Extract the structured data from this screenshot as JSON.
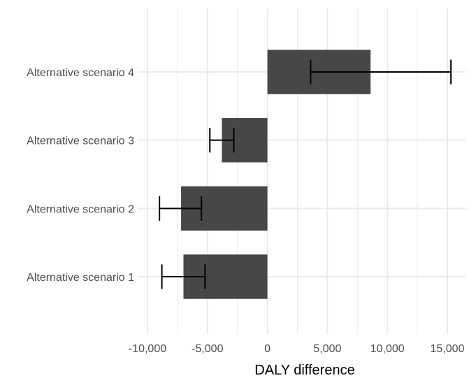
{
  "chart_data": {
    "type": "bar",
    "orientation": "horizontal",
    "categories": [
      "Alternative scenario 1",
      "Alternative scenario 2",
      "Alternative scenario 3",
      "Alternative scenario 4"
    ],
    "values": [
      -7000,
      -7200,
      -3800,
      8600
    ],
    "error_low": [
      -8800,
      -9000,
      -4800,
      3600
    ],
    "error_high": [
      -5200,
      -5500,
      -2800,
      15300
    ],
    "xlabel": "DALY difference",
    "ylabel": "",
    "xlim": [
      -10000,
      15000
    ],
    "x_ticks": [
      -10000,
      -5000,
      0,
      5000,
      10000,
      15000
    ],
    "x_tick_labels": [
      "-10,000",
      "-5,000",
      "0",
      "5,000",
      "10,000",
      "15,000"
    ],
    "grid": true,
    "bar_color": "#474747",
    "grid_color": "#ebebeb",
    "errorbar_color": "#000000"
  }
}
